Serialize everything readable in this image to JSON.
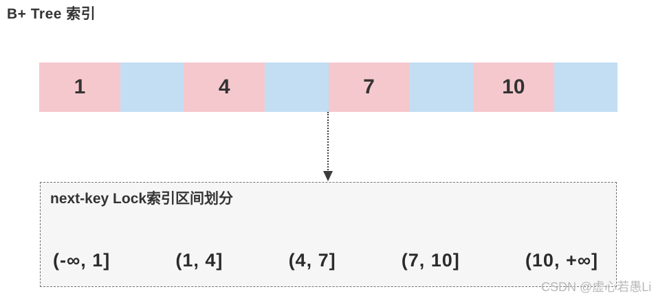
{
  "page": {
    "title": "B+ Tree 索引"
  },
  "index_bar": {
    "keys": [
      "1",
      "4",
      "7",
      "10"
    ]
  },
  "lock_box": {
    "title": "next-key Lock索引区间划分",
    "intervals": [
      "(-∞, 1]",
      "(1, 4]",
      "(4, 7]",
      "(7, 10]",
      "(10, +∞]"
    ]
  },
  "watermark": "CSDN @虚心若愚Li",
  "colors": {
    "page_bg": "#ffffff",
    "key_cell": "#f5c8ce",
    "gap_cell": "#c3def3",
    "box_bg": "#f6f6f6",
    "box_border": "#707070",
    "arrow": "#3a3a3a",
    "text": "#333333",
    "text2": "#2b2b2b",
    "watermark": "#b9b9b9"
  }
}
